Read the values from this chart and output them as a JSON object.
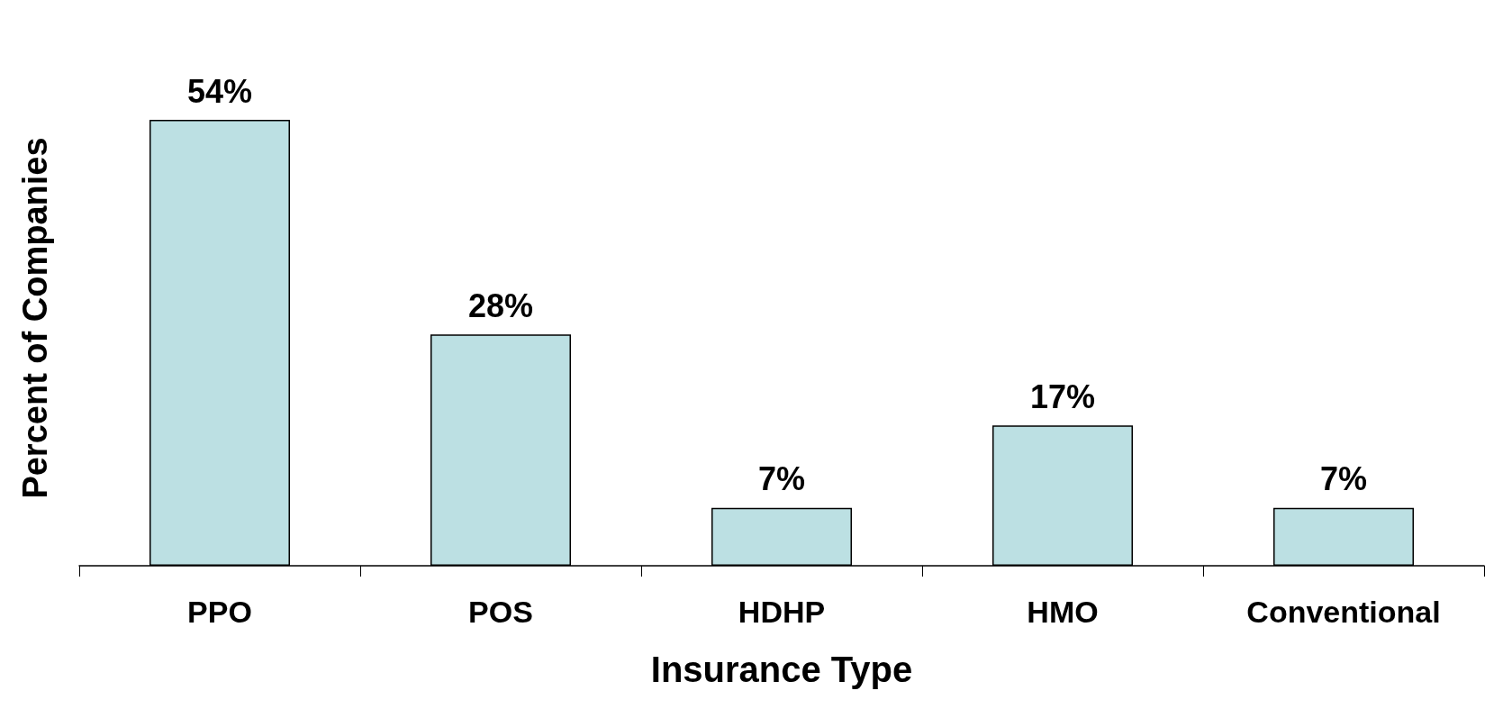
{
  "chart_data": {
    "type": "bar",
    "xlabel": "Insurance Type",
    "ylabel": "Percent of Companies",
    "categories": [
      "PPO",
      "POS",
      "HDHP",
      "HMO",
      "Conventional"
    ],
    "values": [
      54,
      28,
      7,
      17,
      7
    ],
    "color": "#bce0e3",
    "value_labels": [
      "54%",
      "28%",
      "7%",
      "17%",
      "7%"
    ],
    "grid": false
  }
}
